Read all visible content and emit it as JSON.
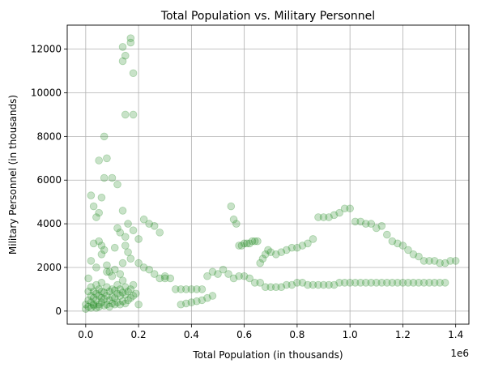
{
  "chart_data": {
    "type": "scatter",
    "title": "Total Population vs. Military Personnel",
    "xlabel": "Total Population (in thousands)",
    "ylabel": "Military Personnel (in thousands)",
    "x_offset_label": "1e6",
    "xlim": [
      -0.07,
      1.45
    ],
    "ylim": [
      -600,
      13100
    ],
    "x_ticks": [
      0.0,
      0.2,
      0.4,
      0.6,
      0.8,
      1.0,
      1.2,
      1.4
    ],
    "x_tick_labels": [
      "0.0",
      "0.2",
      "0.4",
      "0.6",
      "0.8",
      "1.0",
      "1.2",
      "1.4"
    ],
    "y_ticks": [
      0,
      2000,
      4000,
      6000,
      8000,
      10000,
      12000
    ],
    "y_tick_labels": [
      "0",
      "2000",
      "4000",
      "6000",
      "8000",
      "10000",
      "12000"
    ],
    "grid": true,
    "marker_color": "#228B22",
    "marker_alpha": 0.25,
    "series": [
      {
        "x": [
          0.0,
          0.0,
          0.01,
          0.01,
          0.01,
          0.02,
          0.02,
          0.02,
          0.02,
          0.03,
          0.03,
          0.03,
          0.03,
          0.04,
          0.04,
          0.04,
          0.04,
          0.05,
          0.05,
          0.05,
          0.05,
          0.06,
          0.06,
          0.06,
          0.06,
          0.07,
          0.07,
          0.07,
          0.08,
          0.08,
          0.08,
          0.09,
          0.09,
          0.09,
          0.1,
          0.1,
          0.1,
          0.11,
          0.11,
          0.11,
          0.12,
          0.12,
          0.12,
          0.13,
          0.13,
          0.13,
          0.14,
          0.14,
          0.14,
          0.15,
          0.15,
          0.15,
          0.16,
          0.16,
          0.17,
          0.17,
          0.18,
          0.18,
          0.19,
          0.2,
          0.02,
          0.03,
          0.04,
          0.05,
          0.06,
          0.07,
          0.08,
          0.09,
          0.1,
          0.11,
          0.12,
          0.13,
          0.14,
          0.15,
          0.16,
          0.17,
          0.05,
          0.07,
          0.1,
          0.12,
          0.14,
          0.15,
          0.01,
          0.02,
          0.03,
          0.04,
          0.06,
          0.08,
          0.11,
          0.13,
          0.16,
          0.18,
          0.2,
          0.22,
          0.24,
          0.26,
          0.28,
          0.3,
          0.05,
          0.06,
          0.07,
          0.08
        ],
        "y": [
          100,
          300,
          200,
          500,
          900,
          150,
          400,
          700,
          1100,
          250,
          600,
          900,
          300,
          150,
          500,
          800,
          1200,
          300,
          700,
          1000,
          200,
          400,
          600,
          900,
          1300,
          250,
          550,
          850,
          300,
          700,
          1100,
          200,
          500,
          900,
          350,
          650,
          1000,
          300,
          600,
          950,
          400,
          800,
          1200,
          300,
          700,
          1000,
          450,
          850,
          1400,
          350,
          750,
          1100,
          500,
          900,
          600,
          1000,
          700,
          1200,
          800,
          300,
          5300,
          4800,
          4300,
          3200,
          3000,
          2800,
          2100,
          1800,
          1600,
          1900,
          3800,
          1700,
          2200,
          3000,
          2700,
          2400,
          6900,
          8000,
          6100,
          5800,
          4600,
          3400,
          1500,
          2300,
          3100,
          2000,
          2600,
          1800,
          2900,
          3600,
          4000,
          3700,
          3300,
          4200,
          4000,
          3900,
          3600,
          1500,
          4500,
          5200,
          6100,
          7000
        ],
        "name": ""
      },
      {
        "x": [
          0.14,
          0.14,
          0.15,
          0.17,
          0.18,
          0.18,
          0.15,
          0.17
        ],
        "y": [
          12100,
          11450,
          9000,
          12500,
          10900,
          9000,
          11700,
          12300
        ]
      },
      {
        "x": [
          0.2,
          0.22,
          0.24,
          0.26,
          0.28,
          0.3,
          0.32,
          0.34,
          0.36,
          0.38,
          0.4,
          0.42,
          0.44,
          0.46,
          0.48,
          0.5,
          0.52,
          0.54
        ],
        "y": [
          2200,
          2000,
          1900,
          1700,
          1500,
          1600,
          1500,
          1000,
          1000,
          1000,
          1000,
          1000,
          1000,
          1600,
          1800,
          1700,
          1900,
          1700
        ],
        "name": ""
      },
      {
        "x": [
          0.36,
          0.38,
          0.4,
          0.42,
          0.44,
          0.46,
          0.48
        ],
        "y": [
          300,
          350,
          400,
          450,
          500,
          600,
          700
        ]
      },
      {
        "x": [
          0.55,
          0.56,
          0.57,
          0.58,
          0.59,
          0.6,
          0.61,
          0.62,
          0.63,
          0.64,
          0.65,
          0.66,
          0.67,
          0.68,
          0.69,
          0.7,
          0.72,
          0.74,
          0.76,
          0.78,
          0.8,
          0.82,
          0.84,
          0.86,
          0.88,
          0.9,
          0.92,
          0.94,
          0.96,
          0.98,
          1.0,
          1.02,
          1.04,
          1.06,
          1.08,
          1.1,
          1.12,
          1.14,
          1.16,
          1.18,
          1.2,
          1.22,
          1.24,
          1.26,
          1.28,
          1.3,
          1.32,
          1.34,
          1.36,
          1.38,
          1.4
        ],
        "y": [
          4800,
          4200,
          4000,
          3000,
          3000,
          3100,
          3100,
          3100,
          3200,
          3200,
          3200,
          2200,
          2400,
          2600,
          2800,
          2700,
          2600,
          2700,
          2800,
          2900,
          2900,
          3000,
          3100,
          3300,
          4300,
          4300,
          4300,
          4400,
          4500,
          4700,
          4700,
          4100,
          4100,
          4000,
          4000,
          3800,
          3900,
          3500,
          3200,
          3100,
          3000,
          2800,
          2600,
          2500,
          2300,
          2300,
          2300,
          2200,
          2200,
          2300,
          2300
        ],
        "name": ""
      },
      {
        "x": [
          0.56,
          0.58,
          0.6,
          0.62,
          0.64,
          0.66,
          0.68,
          0.7,
          0.72,
          0.74,
          0.76,
          0.78,
          0.8,
          0.82,
          0.84,
          0.86,
          0.88,
          0.9,
          0.92,
          0.94,
          0.96,
          0.98,
          1.0,
          1.02,
          1.04,
          1.06,
          1.08,
          1.1,
          1.12,
          1.14,
          1.16,
          1.18,
          1.2,
          1.22,
          1.24,
          1.26,
          1.28,
          1.3,
          1.32,
          1.34,
          1.36
        ],
        "y": [
          1500,
          1600,
          1600,
          1500,
          1300,
          1300,
          1100,
          1100,
          1100,
          1100,
          1200,
          1200,
          1300,
          1300,
          1200,
          1200,
          1200,
          1200,
          1200,
          1200,
          1300,
          1300,
          1300,
          1300,
          1300,
          1300,
          1300,
          1300,
          1300,
          1300,
          1300,
          1300,
          1300,
          1300,
          1300,
          1300,
          1300,
          1300,
          1300,
          1300,
          1300
        ],
        "name": ""
      }
    ]
  }
}
